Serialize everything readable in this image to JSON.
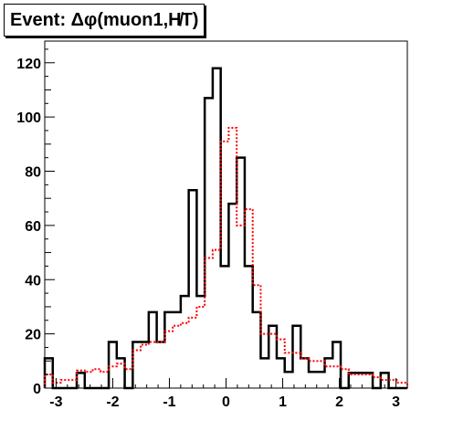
{
  "title": "Event: Δφ(muon1,H̸T)",
  "chart_data": {
    "type": "step",
    "xlabel": "",
    "ylabel": "",
    "xlim": [
      -3.2,
      3.2
    ],
    "ylim": [
      0,
      128
    ],
    "x_ticks": [
      "-3",
      "-2",
      "-1",
      "0",
      "1",
      "2",
      "3"
    ],
    "x_tick_values": [
      -3,
      -2,
      -1,
      0,
      1,
      2,
      3
    ],
    "y_ticks": [
      "0",
      "20",
      "40",
      "60",
      "80",
      "100",
      "120"
    ],
    "y_tick_values": [
      0,
      20,
      40,
      60,
      80,
      100,
      120
    ],
    "bin_edges": [
      -3.2,
      -3.0588,
      -2.9176,
      -2.7765,
      -2.6353,
      -2.4941,
      -2.3529,
      -2.2118,
      -2.0706,
      -1.9294,
      -1.7882,
      -1.6471,
      -1.5059,
      -1.3647,
      -1.2235,
      -1.0824,
      -0.9412,
      -0.8,
      -0.6588,
      -0.5176,
      -0.3765,
      -0.2353,
      -0.0941,
      0.0471,
      0.1882,
      0.3294,
      0.4706,
      0.6118,
      0.7529,
      0.8941,
      1.0353,
      1.1765,
      1.3176,
      1.4588,
      1.6,
      1.7412,
      1.8824,
      2.0235,
      2.1647,
      2.3059,
      2.4471,
      2.5882,
      2.7294,
      2.8706,
      3.0118,
      3.2
    ],
    "series": [
      {
        "color": "#000000",
        "style": "solid",
        "values": [
          11,
          0,
          0,
          0,
          5.6,
          0,
          0,
          0,
          17,
          11,
          0,
          17,
          17,
          28,
          17,
          28,
          28,
          34,
          73,
          34,
          107,
          118,
          45,
          68,
          85,
          45,
          28,
          11,
          23,
          11,
          6,
          23,
          11,
          6,
          6,
          11,
          17,
          0,
          5.6,
          5.6,
          5.6,
          0,
          5.6,
          0,
          0
        ]
      },
      {
        "color": "#ff0000",
        "style": "dotted",
        "values": [
          5,
          2,
          3,
          3,
          6.5,
          6,
          7,
          6,
          8,
          9,
          7,
          14,
          16,
          17,
          17,
          21,
          23,
          24,
          26,
          30,
          48,
          51,
          91,
          96,
          60,
          66,
          38,
          20,
          20,
          18,
          13,
          13,
          11,
          10,
          10,
          8,
          8,
          7,
          5,
          5,
          5,
          4,
          3,
          3,
          2
        ]
      }
    ]
  }
}
